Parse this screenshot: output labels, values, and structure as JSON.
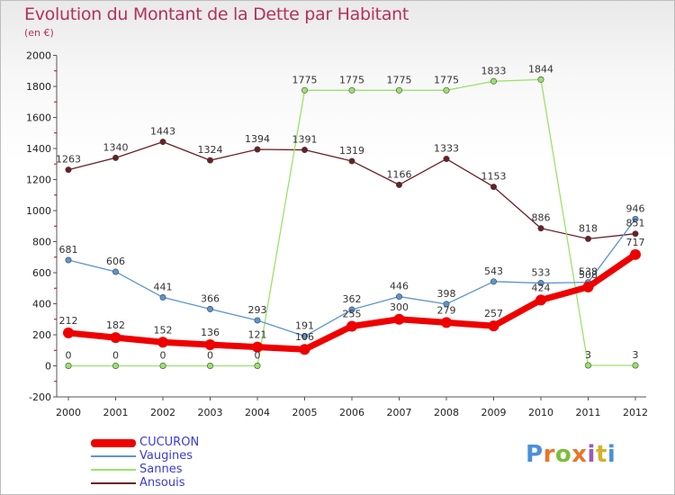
{
  "title": "Evolution du Montant de la Dette par Habitant",
  "subtitle": "(en €)",
  "logo": {
    "text": "Proxiti",
    "letter_colors": [
      "#4a90d9",
      "#e8762c",
      "#7bbf3a",
      "#e8762c",
      "#9b59b6",
      "#d4b12c",
      "#4a90d9"
    ]
  },
  "colors": {
    "title": "#b5305a",
    "axis": "#555555",
    "grid_tick": "#cc0000"
  },
  "chart_data": {
    "type": "line",
    "title": "Evolution du Montant de la Dette par Habitant",
    "subtitle": "(en €)",
    "x": [
      "2000",
      "2001",
      "2002",
      "2003",
      "2004",
      "2005",
      "2006",
      "2007",
      "2008",
      "2009",
      "2010",
      "2011",
      "2012"
    ],
    "ylim": [
      -200,
      2000
    ],
    "yticks": [
      "-200",
      "0",
      "200",
      "400",
      "600",
      "800",
      "1000",
      "1200",
      "1400",
      "1600",
      "1800",
      "2000"
    ],
    "grid": false,
    "legend_position": "bottom-left",
    "series": [
      {
        "name": "Ansouis",
        "color": "#6b1f24",
        "values": [
          1263,
          1340,
          1443,
          1324,
          1394,
          1391,
          1319,
          1166,
          1333,
          1153,
          886,
          818,
          851
        ],
        "labels": [
          "1263",
          "1340",
          "1443",
          "1324",
          "1394",
          "1391",
          "1319",
          "1166",
          "1333",
          "1153",
          "886",
          "818",
          "851"
        ]
      },
      {
        "name": "Sannes",
        "color": "#9be26a",
        "values": [
          0,
          0,
          0,
          0,
          0,
          1775,
          1775,
          1775,
          1775,
          1833,
          1844,
          3,
          3
        ],
        "labels": [
          "0",
          "0",
          "0",
          "0",
          "0",
          "1775",
          "1775",
          "1775",
          "1775",
          "1833",
          "1844",
          "3",
          "3"
        ]
      },
      {
        "name": "Vaugines",
        "color": "#5b95cf",
        "values": [
          681,
          606,
          441,
          366,
          293,
          191,
          362,
          446,
          398,
          543,
          533,
          538,
          946
        ],
        "labels": [
          "681",
          "606",
          "441",
          "366",
          "293",
          "191",
          "362",
          "446",
          "398",
          "543",
          "533",
          "538",
          "946"
        ]
      },
      {
        "name": "CUCURON",
        "color": "#ee0000",
        "values": [
          212,
          182,
          152,
          136,
          121,
          106,
          255,
          300,
          279,
          257,
          424,
          508,
          717
        ],
        "labels": [
          "212",
          "182",
          "152",
          "136",
          "121",
          "106",
          "255",
          "300",
          "279",
          "257",
          "424",
          "508",
          "717"
        ]
      }
    ]
  },
  "legend": [
    {
      "label": "CUCURON",
      "color": "#ee0000",
      "text_color": "#3b3bd9"
    },
    {
      "label": "Vaugines",
      "color": "#5b95cf",
      "text_color": "#3b3bd9"
    },
    {
      "label": "Sannes",
      "color": "#9be26a",
      "text_color": "#3b3bd9"
    },
    {
      "label": "Ansouis",
      "color": "#6b1f24",
      "text_color": "#3b3bd9"
    }
  ]
}
